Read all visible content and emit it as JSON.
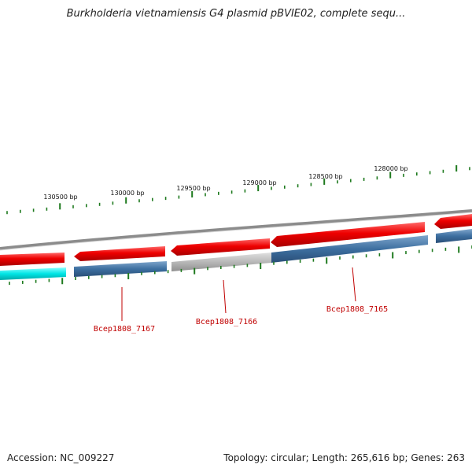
{
  "title": "Burkholderia vietnamiensis G4 plasmid pBVIE02, complete sequ...",
  "footer": {
    "accession": "Accession: NC_009227",
    "summary": "Topology: circular; Length: 265,616 bp; Genes: 263"
  },
  "scale_labels": [
    "130500 bp",
    "130000 bp",
    "129500 bp",
    "129000 bp",
    "128500 bp",
    "128000 bp"
  ],
  "gene_labels": [
    "Bcep1808_7167",
    "Bcep1808_7166",
    "Bcep1808_7165"
  ],
  "colors": {
    "backbone": "#8c8c8c",
    "forward_gene": "#e8000b",
    "reverse_gene_blue": "#3d6fa0",
    "reverse_gene_gray": "#b8b8b8",
    "reverse_gene_cyan": "#00e5e5",
    "tick": "#1e7a1e",
    "gene_label": "#c00000"
  }
}
